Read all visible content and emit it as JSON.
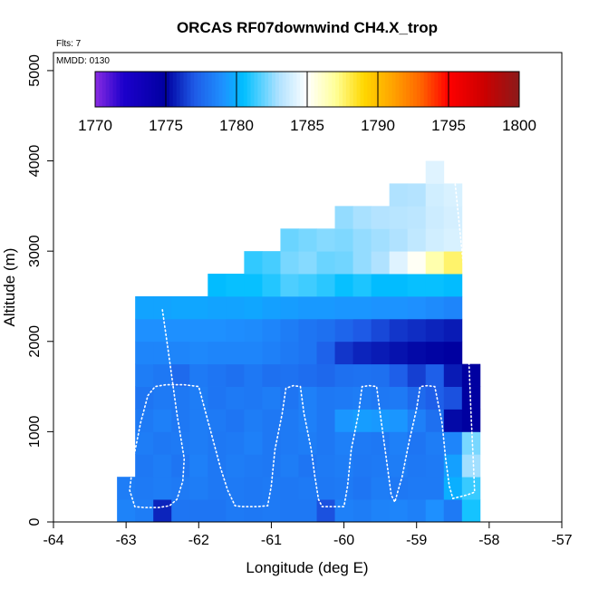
{
  "chart_data": {
    "type": "heatmap",
    "title": "ORCAS RF07downwind CH4.X_trop",
    "xlabel": "Longitude (deg E)",
    "ylabel": "Altitude (m)",
    "xlim": [
      -64,
      -57
    ],
    "ylim": [
      0,
      5200
    ],
    "x_ticks": [
      -64,
      -63,
      -62,
      -61,
      -60,
      -59,
      -58,
      -57
    ],
    "x_tick_labels": [
      "-64",
      "-63",
      "-62",
      "-61",
      "-60",
      "-59",
      "-58",
      "-57"
    ],
    "y_ticks": [
      0,
      1000,
      2000,
      3000,
      4000,
      5000
    ],
    "y_tick_labels": [
      "0",
      "1000",
      "2000",
      "3000",
      "4000",
      "5000"
    ],
    "annotations": {
      "flights": "Flts: 7",
      "date": "MMDD: 0130"
    },
    "colorbar": {
      "min": 1770,
      "max": 1800,
      "ticks": [
        1770,
        1775,
        1780,
        1785,
        1790,
        1795,
        1800
      ],
      "tick_labels": [
        "1770",
        "1775",
        "1780",
        "1785",
        "1790",
        "1795",
        "1800"
      ],
      "stops": [
        {
          "v": 1770,
          "c": "#8a2be2"
        },
        {
          "v": 1772,
          "c": "#1c00cc"
        },
        {
          "v": 1775,
          "c": "#0000a0"
        },
        {
          "v": 1777,
          "c": "#1e5ae6"
        },
        {
          "v": 1779,
          "c": "#1e90ff"
        },
        {
          "v": 1780.5,
          "c": "#00bfff"
        },
        {
          "v": 1783,
          "c": "#b0e2ff"
        },
        {
          "v": 1785,
          "c": "#ffffff"
        },
        {
          "v": 1787,
          "c": "#ffff99"
        },
        {
          "v": 1789,
          "c": "#ffd700"
        },
        {
          "v": 1791,
          "c": "#ffa500"
        },
        {
          "v": 1793,
          "c": "#ff6600"
        },
        {
          "v": 1795,
          "c": "#ff0000"
        },
        {
          "v": 1797.5,
          "c": "#cc0000"
        },
        {
          "v": 1800,
          "c": "#8b1a1a"
        }
      ]
    },
    "grid": {
      "lon_start": -63.5,
      "lon_step": 0.25,
      "alt_start": 0,
      "alt_step": 250,
      "rows": [
        {
          "alt": 0,
          "cols": [
            -63.0,
            -62.75,
            -62.5,
            -62.25,
            -62.0,
            -61.75,
            -61.5,
            -61.25,
            -61.0,
            -60.75,
            -60.5,
            -60.25,
            -60.0,
            -59.75,
            -59.5,
            -59.25,
            -59.0,
            -58.75,
            -58.5,
            -58.25
          ],
          "values": [
            1778.5,
            1778.3,
            1775.8,
            1778.0,
            1778.0,
            1778.0,
            1778.2,
            1778.1,
            1778.2,
            1778.1,
            1778.1,
            1776.8,
            1778.4,
            1778.3,
            1778.5,
            1778.6,
            1778.4,
            1779.0,
            1778.2,
            1780.8
          ]
        },
        {
          "alt": 250,
          "cols": [
            -63.0,
            -62.75,
            -62.5,
            -62.25,
            -62.0,
            -61.75,
            -61.5,
            -61.25,
            -61.0,
            -60.75,
            -60.5,
            -60.25,
            -60.0,
            -59.75,
            -59.5,
            -59.25,
            -59.0,
            -58.75,
            -58.5,
            -58.25
          ],
          "values": [
            1778.3,
            1778.2,
            1778.3,
            1778.2,
            1778.3,
            1778.1,
            1778.2,
            1778.1,
            1778.2,
            1778.1,
            1778.2,
            1778.1,
            1778.2,
            1778.0,
            1778.3,
            1778.1,
            1778.2,
            1778.2,
            1780.0,
            1781.3
          ]
        },
        {
          "alt": 500,
          "cols": [
            -62.75,
            -62.5,
            -62.25,
            -62.0,
            -61.75,
            -61.5,
            -61.25,
            -61.0,
            -60.75,
            -60.5,
            -60.25,
            -60.0,
            -59.75,
            -59.5,
            -59.25,
            -59.0,
            -58.75,
            -58.5,
            -58.25
          ],
          "values": [
            1778.1,
            1778.3,
            1778.0,
            1778.4,
            1778.1,
            1778.3,
            1778.2,
            1778.1,
            1778.3,
            1778.0,
            1778.2,
            1778.3,
            1778.1,
            1778.2,
            1778.3,
            1778.1,
            1778.2,
            1779.5,
            1782.8
          ]
        },
        {
          "alt": 750,
          "cols": [
            -62.75,
            -62.5,
            -62.25,
            -62.0,
            -61.75,
            -61.5,
            -61.25,
            -61.0,
            -60.75,
            -60.5,
            -60.25,
            -60.0,
            -59.75,
            -59.5,
            -59.25,
            -59.0,
            -58.75,
            -58.5,
            -58.25
          ],
          "values": [
            1778.3,
            1778.1,
            1778.2,
            1778.3,
            1778.1,
            1778.2,
            1778.4,
            1778.1,
            1778.2,
            1778.3,
            1778.1,
            1778.4,
            1778.2,
            1778.1,
            1778.4,
            1778.0,
            1778.3,
            1778.6,
            1782.2
          ]
        },
        {
          "alt": 1000,
          "cols": [
            -62.75,
            -62.5,
            -62.25,
            -62.0,
            -61.75,
            -61.5,
            -61.25,
            -61.0,
            -60.75,
            -60.5,
            -60.25,
            -60.0,
            -59.75,
            -59.5,
            -59.25,
            -59.0,
            -58.75,
            -58.5,
            -58.25
          ],
          "values": [
            1778.2,
            1778.4,
            1778.1,
            1778.3,
            1778.2,
            1778.0,
            1778.3,
            1778.1,
            1778.2,
            1778.4,
            1778.1,
            1779.2,
            1779.4,
            1779.3,
            1779.2,
            1778.4,
            1777.8,
            1775.2,
            1775.0
          ]
        },
        {
          "alt": 1250,
          "cols": [
            -62.75,
            -62.5,
            -62.25,
            -62.0,
            -61.75,
            -61.5,
            -61.25,
            -61.0,
            -60.75,
            -60.5,
            -60.25,
            -60.0,
            -59.75,
            -59.5,
            -59.25,
            -59.0,
            -58.75,
            -58.5,
            -58.25
          ],
          "values": [
            1778.0,
            1778.2,
            1778.1,
            1778.3,
            1778.0,
            1778.2,
            1778.1,
            1778.3,
            1778.0,
            1778.4,
            1778.1,
            1778.2,
            1778.3,
            1778.1,
            1778.2,
            1777.6,
            1777.2,
            1776.8,
            1775.0
          ]
        },
        {
          "alt": 1500,
          "cols": [
            -62.75,
            -62.5,
            -62.25,
            -62.0,
            -61.75,
            -61.5,
            -61.25,
            -61.0,
            -60.75,
            -60.5,
            -60.25,
            -60.0,
            -59.75,
            -59.5,
            -59.25,
            -59.0,
            -58.75,
            -58.5,
            -58.25
          ],
          "values": [
            1778.3,
            1778.1,
            1777.6,
            1778.2,
            1778.0,
            1777.8,
            1778.1,
            1777.8,
            1777.9,
            1777.7,
            1777.5,
            1777.8,
            1777.9,
            1777.8,
            1777.2,
            1776.4,
            1777.2,
            1775.6,
            1775.0
          ]
        },
        {
          "alt": 1750,
          "cols": [
            -62.75,
            -62.5,
            -62.25,
            -62.0,
            -61.75,
            -61.5,
            -61.25,
            -61.0,
            -60.75,
            -60.5,
            -60.25,
            -60.0,
            -59.75,
            -59.5,
            -59.25,
            -59.0,
            -58.75,
            -58.5
          ],
          "values": [
            1778.6,
            1778.6,
            1778.6,
            1778.7,
            1778.6,
            1778.6,
            1778.6,
            1778.4,
            1778.2,
            1778.0,
            1777.3,
            1776.2,
            1775.8,
            1775.6,
            1775.4,
            1775.2,
            1775.1,
            1775.0
          ]
        },
        {
          "alt": 2000,
          "cols": [
            -62.75,
            -62.5,
            -62.25,
            -62.0,
            -61.75,
            -61.5,
            -61.25,
            -61.0,
            -60.75,
            -60.5,
            -60.25,
            -60.0,
            -59.75,
            -59.5,
            -59.25,
            -59.0,
            -58.75,
            -58.5
          ],
          "values": [
            1779.0,
            1779.0,
            1779.0,
            1779.0,
            1779.0,
            1778.9,
            1778.8,
            1778.6,
            1778.3,
            1778.0,
            1777.8,
            1777.4,
            1777.0,
            1776.6,
            1776.2,
            1776.0,
            1775.8,
            1775.6
          ]
        },
        {
          "alt": 2250,
          "cols": [
            -62.75,
            -62.5,
            -62.25,
            -62.0,
            -61.75,
            -61.5,
            -61.25,
            -61.0,
            -60.75,
            -60.5,
            -60.25,
            -60.0,
            -59.75,
            -59.5,
            -59.25,
            -59.0,
            -58.75,
            -58.5
          ],
          "values": [
            1779.6,
            1779.6,
            1779.7,
            1779.7,
            1779.6,
            1779.6,
            1779.7,
            1779.5,
            1779.4,
            1779.3,
            1779.3,
            1779.2,
            1779.2,
            1779.1,
            1779.1,
            1779.0,
            1778.8,
            1778.6
          ]
        },
        {
          "alt": 2500,
          "cols": [
            -61.75,
            -61.5,
            -61.25,
            -61.0,
            -60.75,
            -60.5,
            -60.25,
            -60.0,
            -59.75,
            -59.5,
            -59.25,
            -59.0,
            -58.75,
            -58.5
          ],
          "values": [
            1780.4,
            1780.6,
            1780.6,
            1781.0,
            1781.6,
            1781.4,
            1781.1,
            1780.6,
            1780.9,
            1780.4,
            1780.4,
            1780.6,
            1780.6,
            1780.4
          ]
        },
        {
          "alt": 2750,
          "cols": [
            -61.25,
            -61.0,
            -60.75,
            -60.5,
            -60.25,
            -60.0,
            -59.75,
            -59.5,
            -59.25,
            -59.0,
            -58.75,
            -58.5
          ],
          "values": [
            1781.2,
            1781.5,
            1782.2,
            1782.4,
            1782.0,
            1782.1,
            1782.6,
            1783.0,
            1784.2,
            1785.2,
            1786.6,
            1787.6
          ]
        },
        {
          "alt": 3000,
          "cols": [
            -60.75,
            -60.5,
            -60.25,
            -60.0,
            -59.75,
            -59.5,
            -59.25,
            -59.0,
            -58.75,
            -58.5
          ],
          "values": [
            1782.0,
            1782.2,
            1782.4,
            1782.3,
            1782.6,
            1782.8,
            1783.0,
            1783.4,
            1783.8,
            1784.0
          ]
        },
        {
          "alt": 3250,
          "cols": [
            -60.0,
            -59.75,
            -59.5,
            -59.25,
            -59.0,
            -58.75,
            -58.5
          ],
          "values": [
            1782.6,
            1782.9,
            1783.1,
            1783.2,
            1783.3,
            1783.7,
            1783.9
          ]
        },
        {
          "alt": 3500,
          "cols": [
            -59.25,
            -59.0,
            -58.75,
            -58.5
          ],
          "values": [
            1783.0,
            1783.1,
            1783.8,
            1784.0
          ]
        },
        {
          "alt": 3750,
          "cols": [
            -58.75
          ],
          "values": [
            1784.2
          ]
        }
      ]
    },
    "flight_track": {
      "color": "#ffffff",
      "points": [
        [
          -62.5,
          2350
        ],
        [
          -62.4,
          1800
        ],
        [
          -62.3,
          1200
        ],
        [
          -62.2,
          600
        ],
        [
          -62.25,
          400
        ],
        [
          -62.35,
          200
        ],
        [
          -62.5,
          160
        ],
        [
          -62.75,
          160
        ],
        [
          -62.9,
          160
        ],
        [
          -62.95,
          350
        ],
        [
          -62.85,
          800
        ],
        [
          -62.75,
          1200
        ],
        [
          -62.6,
          1520
        ],
        [
          -62.4,
          1520
        ],
        [
          -62.3,
          1520
        ]
      ],
      "segments": [
        [
          [
            -62.5,
            2350
          ],
          [
            -62.42,
            1900
          ],
          [
            -62.3,
            1200
          ],
          [
            -62.2,
            700
          ],
          [
            -62.22,
            450
          ],
          [
            -62.3,
            250
          ],
          [
            -62.4,
            180
          ],
          [
            -62.55,
            160
          ],
          [
            -62.75,
            160
          ],
          [
            -62.88,
            170
          ],
          [
            -62.95,
            350
          ],
          [
            -62.9,
            700
          ],
          [
            -62.8,
            1100
          ],
          [
            -62.7,
            1400
          ],
          [
            -62.6,
            1500
          ],
          [
            -62.45,
            1520
          ],
          [
            -62.2,
            1520
          ],
          [
            -62.0,
            1500
          ],
          [
            -61.9,
            1200
          ],
          [
            -61.8,
            900
          ],
          [
            -61.7,
            600
          ],
          [
            -61.6,
            350
          ],
          [
            -61.5,
            180
          ],
          [
            -61.4,
            170
          ],
          [
            -61.2,
            170
          ],
          [
            -61.05,
            180
          ],
          [
            -61.0,
            400
          ],
          [
            -60.95,
            800
          ],
          [
            -60.85,
            1200
          ],
          [
            -60.8,
            1480
          ],
          [
            -60.7,
            1510
          ],
          [
            -60.6,
            1500
          ],
          [
            -60.55,
            1200
          ],
          [
            -60.45,
            800
          ],
          [
            -60.4,
            500
          ],
          [
            -60.35,
            250
          ],
          [
            -60.3,
            170
          ],
          [
            -60.15,
            170
          ],
          [
            -60.0,
            170
          ],
          [
            -59.95,
            400
          ],
          [
            -59.9,
            800
          ],
          [
            -59.8,
            1200
          ],
          [
            -59.75,
            1500
          ],
          [
            -59.65,
            1510
          ],
          [
            -59.55,
            1500
          ],
          [
            -59.5,
            1200
          ],
          [
            -59.45,
            900
          ],
          [
            -59.4,
            600
          ],
          [
            -59.35,
            300
          ],
          [
            -59.3,
            220
          ],
          [
            -59.2,
            500
          ],
          [
            -59.1,
            900
          ],
          [
            -59.0,
            1250
          ],
          [
            -58.95,
            1500
          ],
          [
            -58.85,
            1510
          ],
          [
            -58.75,
            1500
          ],
          [
            -58.65,
            1100
          ],
          [
            -58.6,
            700
          ],
          [
            -58.55,
            400
          ],
          [
            -58.5,
            260
          ],
          [
            -58.4,
            280
          ],
          [
            -58.3,
            300
          ],
          [
            -58.2,
            330
          ],
          [
            -58.22,
            700
          ],
          [
            -58.25,
            1200
          ],
          [
            -58.28,
            1800
          ],
          [
            -58.3,
            2300
          ],
          [
            -58.35,
            2800
          ],
          [
            -58.4,
            3200
          ],
          [
            -58.45,
            3600
          ],
          [
            -58.5,
            4000
          ]
        ]
      ]
    }
  }
}
